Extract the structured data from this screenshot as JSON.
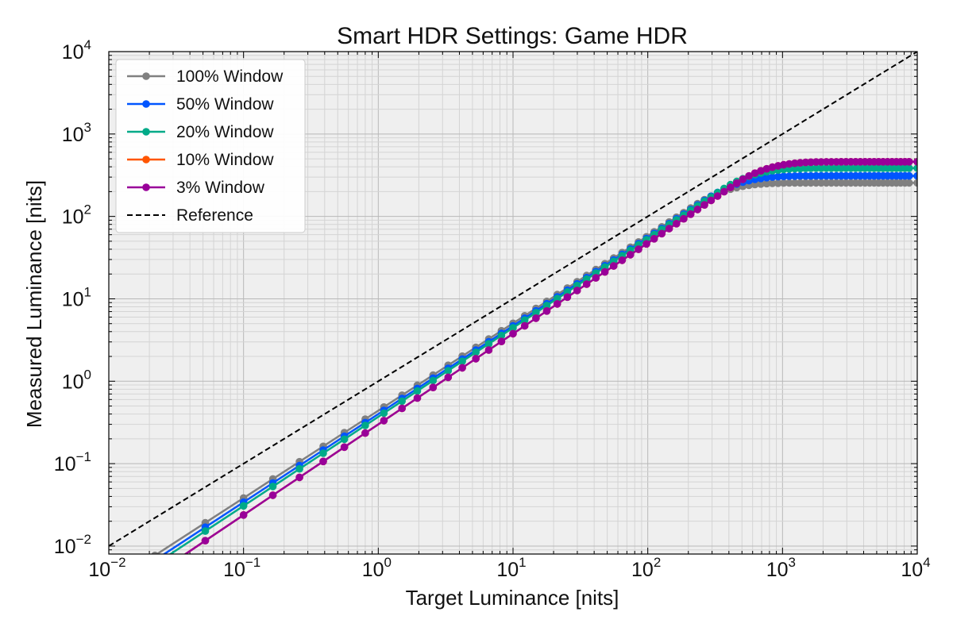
{
  "chart_data": {
    "type": "line",
    "title": "Smart HDR Settings: Game HDR",
    "xlabel": "Target Luminance [nits]",
    "ylabel": "Measured Luminance [nits]",
    "xscale": "log",
    "yscale": "log",
    "xlim": [
      0.01,
      10000
    ],
    "ylim": [
      0.008,
      10000
    ],
    "x_ticks": [
      {
        "base": "10",
        "exp": "−2"
      },
      {
        "base": "10",
        "exp": "−1"
      },
      {
        "base": "10",
        "exp": "0"
      },
      {
        "base": "10",
        "exp": "1"
      },
      {
        "base": "10",
        "exp": "2"
      },
      {
        "base": "10",
        "exp": "3"
      },
      {
        "base": "10",
        "exp": "4"
      }
    ],
    "y_ticks": [
      {
        "base": "10",
        "exp": "−2"
      },
      {
        "base": "10",
        "exp": "−1"
      },
      {
        "base": "10",
        "exp": "0"
      },
      {
        "base": "10",
        "exp": "1"
      },
      {
        "base": "10",
        "exp": "2"
      },
      {
        "base": "10",
        "exp": "3"
      },
      {
        "base": "10",
        "exp": "4"
      }
    ],
    "grid": true,
    "legend_position": "upper-left",
    "x": [
      0.022,
      0.052,
      0.1,
      0.165,
      0.26,
      0.39,
      0.56,
      0.8,
      1.1,
      1.5,
      1.95,
      2.55,
      3.3,
      4.2,
      5.3,
      6.6,
      8.2,
      10.0,
      12.2,
      14.8,
      17.8,
      21.3,
      25.3,
      29.9,
      35.2,
      41.2,
      48.0,
      55.8,
      64.5,
      74.3,
      85.3,
      97.7,
      111.5,
      127.0,
      144.2,
      163.4,
      184.7,
      208.3,
      234.4,
      263.2,
      295.0,
      330.0,
      368.5,
      410.8,
      457.2,
      508.0,
      563.6,
      624.3,
      690.6,
      762.9,
      841.6,
      927.4,
      1020.0,
      1122.0,
      1233.0,
      1353.0,
      1483.0,
      1623.0,
      1774.0,
      1937.0,
      2113.0,
      2303.0,
      2507.0,
      2726.0,
      2962.0,
      3215.0,
      3487.0,
      3779.0,
      4092.0,
      4427.0,
      4786.0,
      5171.0,
      5582.0,
      6022.0,
      6492.0,
      6994.0,
      7530.0,
      8101.0,
      8711.0,
      10000.0
    ],
    "series": [
      {
        "name": "100% Window",
        "color": "#808080",
        "peak": 255,
        "offset_factor": 0.44,
        "slope": 1.06
      },
      {
        "name": "50% Window",
        "color": "#0055ff",
        "peak": 310,
        "offset_factor": 0.4,
        "slope": 1.07
      },
      {
        "name": "20% Window",
        "color": "#00aa88",
        "peak": 385,
        "offset_factor": 0.37,
        "slope": 1.08
      },
      {
        "name": "10% Window",
        "color": "#ff5500",
        "peak": 460,
        "offset_factor": 0.3,
        "slope": 1.1
      },
      {
        "name": "3% Window",
        "color": "#990099",
        "peak": 460,
        "offset_factor": 0.3,
        "slope": 1.1
      }
    ],
    "reference": {
      "name": "Reference",
      "color": "#000000"
    }
  }
}
